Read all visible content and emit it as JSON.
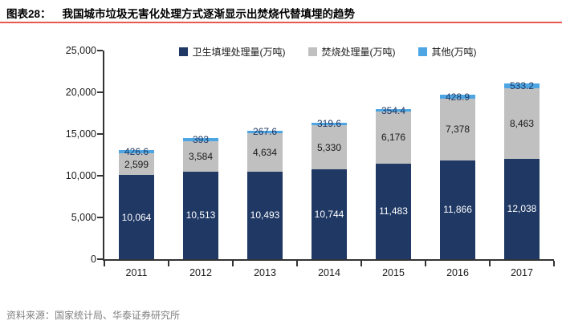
{
  "header": {
    "label": "图表28：",
    "title": "我国城市垃圾无害化处理方式逐渐显示出焚烧代替填埋的趋势",
    "divider_color": "#E8584C"
  },
  "source": {
    "text": "资料来源：国家统计局、华泰证券研究所"
  },
  "chart_data": {
    "type": "bar",
    "stacked": true,
    "title": "",
    "xlabel": "",
    "ylabel": "",
    "categories": [
      "2011",
      "2012",
      "2013",
      "2014",
      "2015",
      "2016",
      "2017"
    ],
    "series": [
      {
        "key": "landfill",
        "name": "卫生填埋处理量(万吨)",
        "color": "#1F3864",
        "label_color": "#FFFFFF",
        "values": [
          10064,
          10513,
          10493,
          10744,
          11483,
          11866,
          12038
        ],
        "labels": [
          "10,064",
          "10,513",
          "10,493",
          "10,744",
          "11,483",
          "11,866",
          "12,038"
        ]
      },
      {
        "key": "incineration",
        "name": "焚烧处理量(万吨)",
        "color": "#C0C0C0",
        "label_color": "#1a1a1a",
        "values": [
          2599,
          3584,
          4634,
          5330,
          6176,
          7378,
          8463
        ],
        "labels": [
          "2,599",
          "3,584",
          "4,634",
          "5,330",
          "6,176",
          "7,378",
          "8,463"
        ]
      },
      {
        "key": "other",
        "name": "其他(万吨)",
        "color": "#4DA6E3",
        "label_color": "#1F3864",
        "values": [
          426.6,
          393,
          267.6,
          319.6,
          354.4,
          428.9,
          533.2
        ],
        "labels": [
          "426.6",
          "393",
          "267.6",
          "319.6",
          "354.4",
          "428.9",
          "533.2"
        ]
      }
    ],
    "ylim": [
      0,
      25000
    ],
    "ytick_values": [
      0,
      5000,
      10000,
      15000,
      20000,
      25000
    ],
    "ytick_labels": [
      "0",
      "5,000",
      "10,000",
      "15,000",
      "20,000",
      "25,000"
    ],
    "legend_position": "top",
    "grid": false,
    "axis_color": "#333333"
  }
}
